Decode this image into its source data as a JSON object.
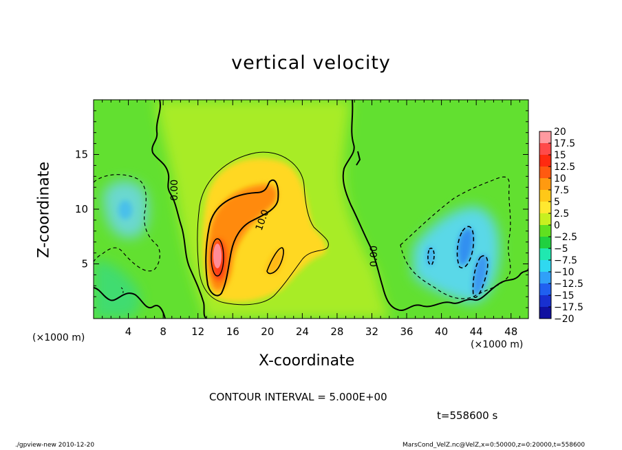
{
  "chart_data": {
    "type": "heatmap",
    "title": "vertical velocity",
    "xlabel": "X-coordinate",
    "ylabel": "Z-coordinate",
    "x_unit_label": "(×1000 m)",
    "xlim": [
      0,
      50
    ],
    "ylim": [
      0,
      20
    ],
    "x_ticks": [
      4,
      8,
      12,
      16,
      20,
      24,
      28,
      32,
      36,
      40,
      44,
      48
    ],
    "y_ticks": [
      5,
      10,
      15
    ],
    "colorbar": {
      "levels": [
        "20",
        "17.5",
        "15",
        "12.5",
        "10",
        "7.5",
        "5",
        "2.5",
        "0",
        "−2.5",
        "−5",
        "−7.5",
        "−10",
        "−12.5",
        "−15",
        "−17.5",
        "−20"
      ],
      "colors": [
        "#ff9aa0",
        "#ff4a4a",
        "#ff2a10",
        "#ff5a10",
        "#ff9a10",
        "#ffc818",
        "#ffe830",
        "#c8f020",
        "#60e020",
        "#20d040",
        "#20e8b0",
        "#30d8f0",
        "#30a0f8",
        "#2060f0",
        "#1830d0",
        "#1010a0",
        "#6010b0"
      ]
    },
    "contour_labels": [
      "0.00",
      "10.0",
      "0.00"
    ],
    "features": [
      {
        "name": "updraft core",
        "x": 14,
        "z": 6,
        "value": 19
      },
      {
        "name": "updraft band",
        "x": 19,
        "z": 10,
        "value": 10
      },
      {
        "name": "downdraft cells",
        "x": 43,
        "z": 4,
        "value": -10
      },
      {
        "name": "weak downdraft left",
        "x": 4,
        "z": 10,
        "value": -4
      }
    ]
  },
  "contour_interval": "CONTOUR INTERVAL = 5.000E+00",
  "time_label": "t=558600 s",
  "footer": {
    "left": "./gpview-new  2010-12-20",
    "right": "MarsCond_VelZ.nc@VelZ,x=0:50000,z=0:20000,t=558600"
  }
}
